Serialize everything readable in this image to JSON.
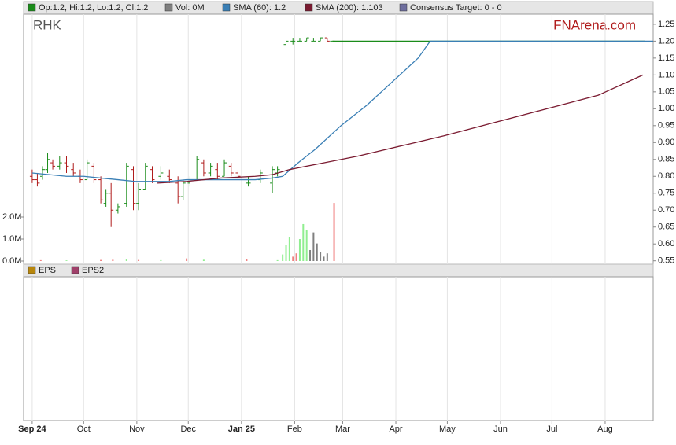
{
  "chart_data": {
    "type": "ohlc",
    "title": "RHK",
    "brand": "FNArena.com",
    "xlim": [
      -5,
      362
    ],
    "xticks": [
      {
        "value": 0,
        "label": "Sep 24"
      },
      {
        "value": 30,
        "label": "Oct"
      },
      {
        "value": 61,
        "label": "Nov"
      },
      {
        "value": 91,
        "label": "Dec"
      },
      {
        "value": 122,
        "label": "Jan 25"
      },
      {
        "value": 153,
        "label": "Feb"
      },
      {
        "value": 181,
        "label": "Mar"
      },
      {
        "value": 212,
        "label": "Apr"
      },
      {
        "value": 242,
        "label": "May"
      },
      {
        "value": 273,
        "label": "Jun"
      },
      {
        "value": 303,
        "label": "Jul"
      },
      {
        "value": 334,
        "label": "Aug"
      }
    ],
    "ylim": [
      0.54,
      1.28
    ],
    "yticks": [
      0.55,
      {
        "value": 0.6,
        "label": "0.60"
      },
      0.65,
      {
        "value": 0.7,
        "label": "0.70"
      },
      0.75,
      {
        "value": 0.8,
        "label": "0.80"
      },
      0.85,
      {
        "value": 0.9,
        "label": "0.90"
      },
      0.95,
      {
        "value": 1.0,
        "label": "1.00"
      },
      1.05,
      {
        "value": 1.1,
        "label": "1.10"
      },
      1.15,
      {
        "value": 1.2,
        "label": "1.20"
      },
      1.25
    ],
    "volume_ylim": [
      0,
      2800000
    ],
    "volume_ticks": [
      {
        "value": 0,
        "label": "0.0M"
      },
      {
        "value": 1000000,
        "label": "1.0M"
      },
      {
        "value": 2000000,
        "label": "2.0M"
      }
    ],
    "grid": true,
    "price": {
      "name": "Op:1.2, Hi:1.2, Lo:1.2, Cl:1.2",
      "color": "#1a8c1a",
      "up_color": "#1a8c1a",
      "down_color": "#b01c1c",
      "x": [
        0,
        3,
        6,
        9,
        12,
        16,
        20,
        24,
        28,
        32,
        36,
        40,
        43,
        46,
        50,
        55,
        59,
        62,
        66,
        70,
        75,
        80,
        85,
        88,
        92,
        96,
        100,
        104,
        108,
        112,
        116,
        120,
        126,
        133,
        140,
        143,
        148,
        152,
        156,
        160,
        164,
        168,
        172,
        175
      ],
      "open": [
        0.8,
        0.79,
        0.8,
        0.82,
        0.84,
        0.83,
        0.84,
        0.82,
        0.8,
        0.79,
        0.83,
        0.79,
        0.72,
        0.75,
        0.7,
        0.72,
        0.82,
        0.72,
        0.76,
        0.82,
        0.8,
        0.8,
        0.78,
        0.74,
        0.78,
        0.79,
        0.84,
        0.81,
        0.82,
        0.8,
        0.83,
        0.81,
        0.78,
        0.79,
        0.78,
        0.81,
        1.19,
        1.2,
        1.2,
        1.2,
        1.2,
        1.2,
        1.21,
        1.2
      ],
      "high": [
        0.82,
        0.81,
        0.83,
        0.87,
        0.85,
        0.86,
        0.86,
        0.84,
        0.82,
        0.85,
        0.84,
        0.8,
        0.76,
        0.78,
        0.72,
        0.84,
        0.83,
        0.78,
        0.84,
        0.83,
        0.83,
        0.82,
        0.8,
        0.79,
        0.8,
        0.86,
        0.85,
        0.84,
        0.84,
        0.85,
        0.84,
        0.82,
        0.8,
        0.82,
        0.83,
        0.83,
        1.2,
        1.21,
        1.21,
        1.21,
        1.21,
        1.21,
        1.21,
        1.2
      ],
      "low": [
        0.78,
        0.77,
        0.79,
        0.81,
        0.82,
        0.82,
        0.81,
        0.8,
        0.78,
        0.79,
        0.78,
        0.72,
        0.71,
        0.65,
        0.69,
        0.71,
        0.7,
        0.7,
        0.76,
        0.78,
        0.79,
        0.78,
        0.72,
        0.73,
        0.77,
        0.79,
        0.8,
        0.8,
        0.79,
        0.8,
        0.8,
        0.79,
        0.77,
        0.78,
        0.75,
        0.8,
        1.18,
        1.19,
        1.2,
        1.2,
        1.2,
        1.2,
        1.2,
        1.2
      ],
      "close": [
        0.79,
        0.78,
        0.82,
        0.85,
        0.83,
        0.84,
        0.83,
        0.81,
        0.79,
        0.84,
        0.79,
        0.73,
        0.75,
        0.7,
        0.71,
        0.83,
        0.72,
        0.76,
        0.83,
        0.79,
        0.81,
        0.79,
        0.74,
        0.78,
        0.79,
        0.85,
        0.81,
        0.83,
        0.8,
        0.84,
        0.81,
        0.8,
        0.78,
        0.81,
        0.82,
        0.82,
        1.2,
        1.2,
        1.2,
        1.21,
        1.2,
        1.21,
        1.2,
        1.2
      ]
    },
    "volume": {
      "name": "Vol: 0M",
      "color": "#7f7f7f",
      "x": [
        5,
        20,
        40,
        47,
        55,
        62,
        75,
        90,
        100,
        125,
        143,
        146,
        148,
        150,
        152,
        154,
        156,
        158,
        160,
        162,
        164,
        166,
        168,
        170,
        172,
        176
      ],
      "values": [
        40000,
        30000,
        50000,
        60000,
        70000,
        50000,
        40000,
        120000,
        60000,
        80000,
        40000,
        300000,
        750000,
        1100000,
        200000,
        350000,
        1000000,
        1680000,
        1400000,
        500000,
        1300000,
        800000,
        400000,
        200000,
        350000,
        2640000
      ],
      "colors": [
        "#f08080",
        "#90ee90",
        "#f08080",
        "#f08080",
        "#90ee90",
        "#f08080",
        "#90ee90",
        "#f08080",
        "#90ee90",
        "#f08080",
        "#90ee90",
        "#90ee90",
        "#90ee90",
        "#90ee90",
        "#f08080",
        "#f08080",
        "#90ee90",
        "#90ee90",
        "#90ee90",
        "#808080",
        "#808080",
        "#808080",
        "#808080",
        "#808080",
        "#808080",
        "#f08080"
      ]
    },
    "series": [
      {
        "name": "SMA (60): 1.2",
        "color": "#3a7fb5",
        "x": [
          0,
          10,
          20,
          30,
          40,
          50,
          60,
          70,
          80,
          90,
          100,
          110,
          120,
          130,
          140,
          146,
          155,
          165,
          180,
          195,
          210,
          225,
          232,
          362
        ],
        "values": [
          0.81,
          0.805,
          0.8,
          0.8,
          0.795,
          0.79,
          0.785,
          0.785,
          0.785,
          0.79,
          0.79,
          0.79,
          0.79,
          0.79,
          0.795,
          0.8,
          0.84,
          0.88,
          0.95,
          1.01,
          1.08,
          1.15,
          1.2,
          1.2
        ]
      },
      {
        "name": "SMA (200): 1.103",
        "color": "#7a1a30",
        "x": [
          73,
          90,
          110,
          130,
          140,
          150,
          170,
          190,
          215,
          240,
          270,
          300,
          330,
          356
        ],
        "values": [
          0.78,
          0.785,
          0.795,
          0.8,
          0.805,
          0.82,
          0.84,
          0.86,
          0.89,
          0.92,
          0.96,
          1.0,
          1.04,
          1.1
        ]
      }
    ],
    "consensus": {
      "name": "Consensus Target: 0 - 0",
      "color": "#6e6e9e"
    },
    "lower_panel": {
      "series": [
        {
          "name": "EPS",
          "color": "#b8860b"
        },
        {
          "name": "EPS2",
          "color": "#a0406a"
        }
      ]
    }
  }
}
